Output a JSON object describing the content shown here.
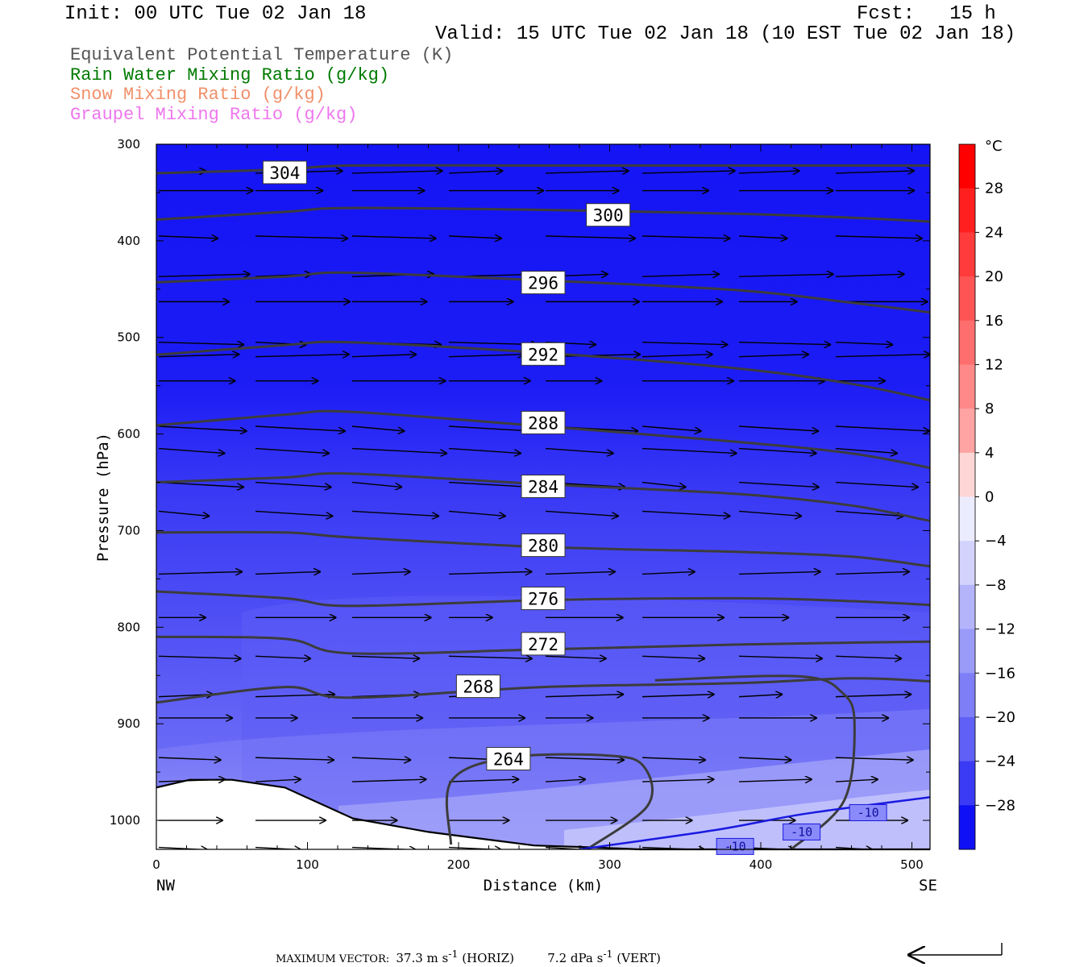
{
  "header": {
    "init": "Init: 00 UTC Tue 02 Jan 18",
    "fcst": "Fcst:   15 h",
    "valid": "Valid: 15 UTC Tue 02 Jan 18 (10 EST Tue 02 Jan 18)"
  },
  "fields": [
    {
      "label": "Equivalent Potential Temperature (K)",
      "color": "#555555"
    },
    {
      "label": "Rain Water Mixing Ratio (g/kg)",
      "color": "#007a00"
    },
    {
      "label": "Snow Mixing Ratio (g/kg)",
      "color": "#f0906a"
    },
    {
      "label": "Graupel Mixing Ratio (g/kg)",
      "color": "#ee77ee"
    }
  ],
  "footer": {
    "max_vector_label": "MAXIMUM VECTOR:",
    "horiz": "37.3 m s",
    "horiz_unit_tail": " (HORIZ)",
    "vert": "7.2 dPa s",
    "vert_unit_tail": " (VERT)",
    "exp": "-1"
  },
  "chart_data": {
    "type": "cross-section",
    "xlabel": "Distance (km)",
    "ylabel": "Pressure (hPa)",
    "xlim": [
      0,
      512
    ],
    "ylim": [
      1030,
      300
    ],
    "x_ticks": [
      0,
      100,
      200,
      300,
      400,
      500
    ],
    "y_ticks": [
      300,
      400,
      500,
      600,
      700,
      800,
      900,
      1000
    ],
    "left_endpoint": "NW",
    "right_endpoint": "SE",
    "colorbar": {
      "unit": "°C",
      "ticks": [
        28,
        24,
        20,
        16,
        12,
        8,
        4,
        0,
        -4,
        -8,
        -12,
        -16,
        -20,
        -24,
        -28
      ],
      "range": [
        -32,
        32
      ],
      "step": 4
    },
    "theta_e_contours": [
      {
        "value": 304,
        "p": [
          330,
          326,
          322,
          322,
          322,
          322,
          322
        ]
      },
      {
        "value": 300,
        "p": [
          378,
          370,
          366,
          368,
          372,
          376,
          380
        ]
      },
      {
        "value": 296,
        "p": [
          443,
          437,
          433,
          441,
          451,
          464,
          474
        ]
      },
      {
        "value": 292,
        "p": [
          518,
          508,
          505,
          516,
          532,
          548,
          565
        ]
      },
      {
        "value": 288,
        "p": [
          591,
          580,
          577,
          592,
          608,
          620,
          635
        ]
      },
      {
        "value": 284,
        "p": [
          650,
          645,
          641,
          652,
          662,
          674,
          690
        ]
      },
      {
        "value": 280,
        "p": [
          702,
          702,
          707,
          717,
          722,
          727,
          737
        ]
      },
      {
        "value": 276,
        "p": [
          763,
          770,
          778,
          772,
          770,
          773,
          777
        ]
      },
      {
        "value": 272,
        "p": [
          810,
          812,
          827,
          823,
          818,
          816,
          815
        ]
      },
      {
        "value": 268,
        "p": [
          878,
          862,
          873,
          862,
          858,
          853,
          856
        ]
      },
      {
        "value": 264,
        "p": [
          950,
          930,
          952,
          975,
          1025
        ]
      }
    ],
    "contour_labels": [
      {
        "value": "304",
        "x": 85,
        "p": 330
      },
      {
        "value": "300",
        "x": 299,
        "p": 374
      },
      {
        "value": "296",
        "x": 256,
        "p": 444
      },
      {
        "value": "292",
        "x": 256,
        "p": 518
      },
      {
        "value": "288",
        "x": 256,
        "p": 589
      },
      {
        "value": "284",
        "x": 256,
        "p": 655
      },
      {
        "value": "280",
        "x": 256,
        "p": 716
      },
      {
        "value": "276",
        "x": 256,
        "p": 771
      },
      {
        "value": "272",
        "x": 256,
        "p": 818
      },
      {
        "value": "268",
        "x": 213,
        "p": 862
      },
      {
        "value": "264",
        "x": 233,
        "p": 937
      }
    ],
    "temperature_contour": {
      "value": -10,
      "labels": [
        "-10",
        "-10",
        "-10"
      ]
    }
  }
}
